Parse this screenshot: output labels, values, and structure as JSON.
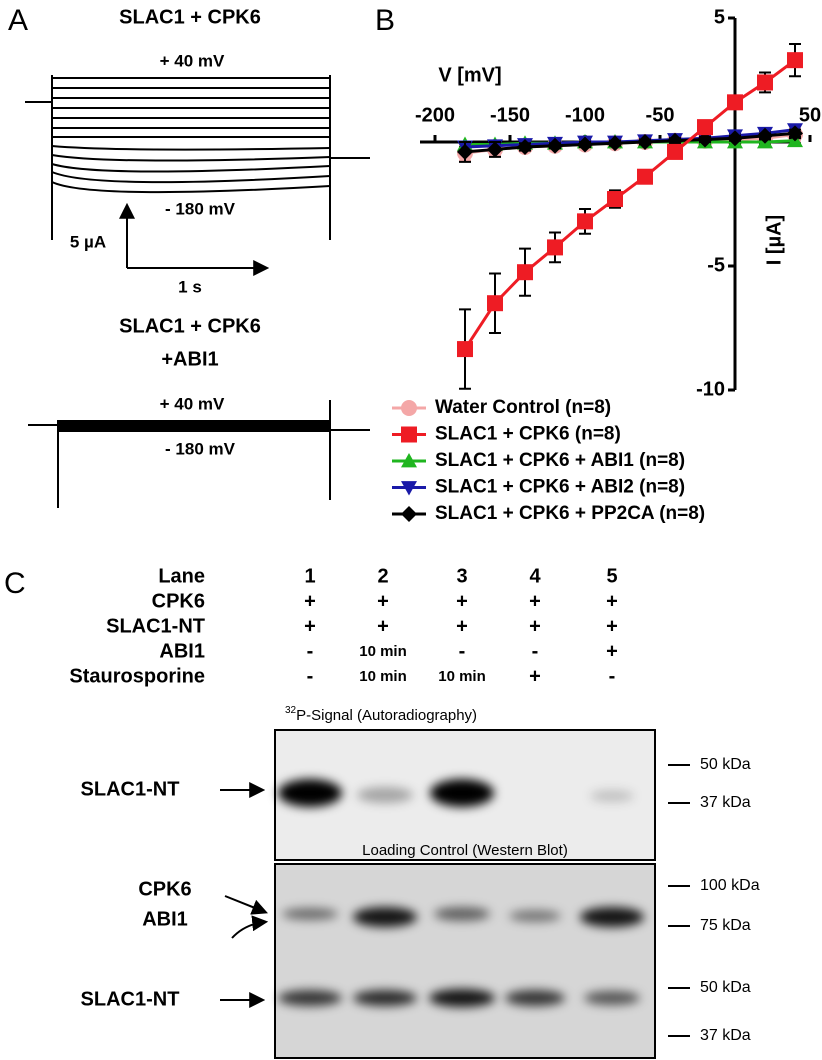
{
  "panel_a": {
    "label": "A",
    "top": {
      "title": "SLAC1 + CPK6",
      "upper": "+ 40 mV",
      "lower": "- 180 mV",
      "scale_y": "5 µA",
      "scale_x": "1 s"
    },
    "bottom": {
      "title": [
        "SLAC1 + CPK6",
        "+ABI1"
      ],
      "upper": "+ 40 mV",
      "lower": "- 180 mV"
    }
  },
  "chart_data": {
    "type": "line",
    "label": "B",
    "xlabel": "V [mV]",
    "ylabel": "I [µA]",
    "x": [
      -180,
      -160,
      -140,
      -120,
      -100,
      -80,
      -60,
      -40,
      -20,
      0,
      20,
      40
    ],
    "xlim": [
      -200,
      50
    ],
    "xticks": [
      -200,
      -150,
      -100,
      -50,
      50
    ],
    "ylim": [
      -10,
      5
    ],
    "yticks": [
      -10,
      -5,
      5
    ],
    "series": [
      {
        "name": "Water Control (n=8)",
        "color": "#f4a7a7",
        "marker": "circle",
        "values": [
          -0.45,
          -0.3,
          -0.2,
          -0.15,
          -0.1,
          -0.05,
          0,
          0.05,
          0.05,
          0.1,
          0.15,
          0.3
        ],
        "errors": [
          0.3,
          0.25,
          0.15,
          0.1,
          0.1,
          0.1,
          0.1,
          0.1,
          0.1,
          0.1,
          0.1,
          0.25
        ]
      },
      {
        "name": "SLAC1 + CPK6 (n=8)",
        "color": "#ee1c24",
        "marker": "square",
        "values": [
          -8.35,
          -6.5,
          -5.25,
          -4.25,
          -3.2,
          -2.3,
          -1.4,
          -0.4,
          0.6,
          1.6,
          2.4,
          3.3
        ],
        "errors": [
          1.6,
          1.2,
          0.95,
          0.6,
          0.5,
          0.35,
          0.25,
          0.2,
          0.2,
          0.2,
          0.4,
          0.65
        ]
      },
      {
        "name": "SLAC1 + CPK6 + ABI1 (n=8)",
        "color": "#1fb51f",
        "marker": "triangle-up",
        "values": [
          -0.1,
          -0.1,
          -0.05,
          -0.05,
          0,
          0,
          0,
          0,
          0,
          0,
          0,
          0.05
        ],
        "errors": [
          0.1,
          0.1,
          0.1,
          0.1,
          0.1,
          0.1,
          0.1,
          0.1,
          0.1,
          0.1,
          0.1,
          0.1
        ]
      },
      {
        "name": "SLAC1 + CPK6 + ABI2 (n=8)",
        "color": "#1a1aa8",
        "marker": "triangle-down",
        "values": [
          -0.2,
          -0.15,
          -0.1,
          -0.05,
          0,
          0,
          0.05,
          0.1,
          0.15,
          0.25,
          0.35,
          0.5
        ],
        "errors": [
          0.15,
          0.1,
          0.1,
          0.1,
          0.1,
          0.1,
          0.1,
          0.1,
          0.1,
          0.1,
          0.1,
          0.15
        ]
      },
      {
        "name": "SLAC1 + CPK6 + PP2CA (n=8)",
        "color": "#000000",
        "marker": "diamond",
        "values": [
          -0.4,
          -0.3,
          -0.2,
          -0.15,
          -0.1,
          -0.05,
          0,
          0.05,
          0.1,
          0.15,
          0.25,
          0.35
        ],
        "errors": [
          0.4,
          0.3,
          0.15,
          0.1,
          0.1,
          0.1,
          0.1,
          0.1,
          0.1,
          0.1,
          0.1,
          0.15
        ]
      }
    ]
  },
  "panel_c": {
    "label": "C",
    "rows": [
      {
        "label": "Lane",
        "cells": [
          "1",
          "2",
          "3",
          "4",
          "5"
        ]
      },
      {
        "label": "CPK6",
        "cells": [
          "+",
          "+",
          "+",
          "+",
          "+"
        ]
      },
      {
        "label": "SLAC1-NT",
        "cells": [
          "+",
          "+",
          "+",
          "+",
          "+"
        ]
      },
      {
        "label": "ABI1",
        "cells": [
          "-",
          "10 min",
          "-",
          "-",
          "+"
        ]
      },
      {
        "label": "Staurosporine",
        "cells": [
          "-",
          "10 min",
          "10 min",
          "+",
          "-"
        ]
      }
    ],
    "blot1": {
      "title_sup": "32",
      "title": "P-Signal (Autoradiography)",
      "band": "SLAC1-NT",
      "markers": [
        "50 kDa",
        "37 kDa"
      ]
    },
    "blot2": {
      "title": "Loading Control (Western Blot)",
      "bands": [
        "CPK6",
        "ABI1",
        "SLAC1-NT"
      ],
      "markers": [
        "100 kDa",
        "75 kDa",
        "50 kDa",
        "37 kDa"
      ]
    }
  }
}
